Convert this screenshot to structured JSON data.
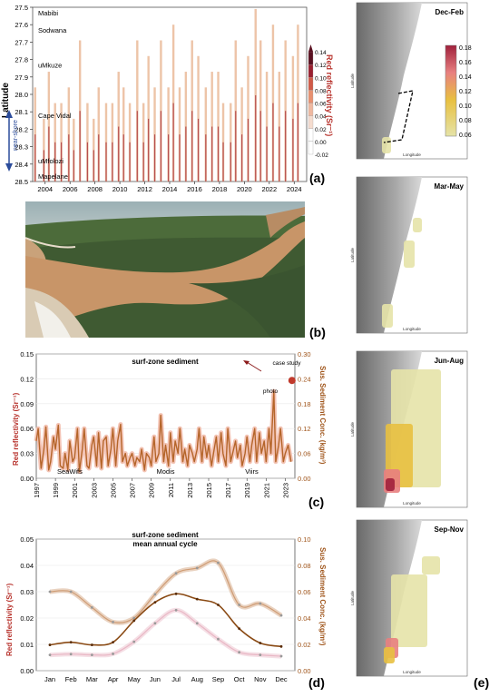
{
  "panel_a": {
    "letter": "(a)",
    "ylabel": "Latitude",
    "cbar_label": "Red reflectivity (Sr⁻¹)",
    "cbar_ticks": [
      "0.14",
      "0.12",
      "0.10",
      "0.08",
      "0.06",
      "0.04",
      "0.02",
      "0.00",
      "-0.02"
    ],
    "y_ticks": [
      "27.5",
      "27.6",
      "27.7",
      "27.8",
      "27.9",
      "28.0",
      "28.1",
      "28.2",
      "28.3",
      "28.4",
      "28.5"
    ],
    "x_ticks": [
      "2004",
      "2006",
      "2008",
      "2010",
      "2012",
      "2014",
      "2016",
      "2018",
      "2020",
      "2022",
      "2024"
    ],
    "places": [
      {
        "name": "Mabibi",
        "lat": 27.53
      },
      {
        "name": "Sodwana",
        "lat": 27.63
      },
      {
        "name": "uMkuze",
        "lat": 27.83
      },
      {
        "name": "Cape Vidal",
        "lat": 28.12
      },
      {
        "name": "uMfolozi",
        "lat": 28.38
      },
      {
        "name": "Mapelane",
        "lat": 28.47
      }
    ],
    "nearshore_label": "near-shore"
  },
  "panel_b": {
    "letter": "(b)"
  },
  "panel_c": {
    "letter": "(c)",
    "title": "surf-zone sediment",
    "ylabel_left": "Red reflectivity (Sr⁻¹)",
    "ylabel_right": "Sus. Sediment Conc. (kg/m³)",
    "y_left_ticks": [
      "0.15",
      "0.12",
      "0.09",
      "0.06",
      "0.03",
      "0.00"
    ],
    "y_right_ticks": [
      "0.30",
      "0.24",
      "0.18",
      "0.12",
      "0.06",
      "0.00"
    ],
    "x_ticks": [
      "1997",
      "1999",
      "2001",
      "2003",
      "2005",
      "2007",
      "2009",
      "2011",
      "2013",
      "2015",
      "2017",
      "2019",
      "2021",
      "2023"
    ],
    "sensors": [
      "SeaWifs",
      "Modis",
      "Viirs"
    ],
    "annotations": {
      "photo": "photo",
      "case_study": "case study"
    }
  },
  "panel_d": {
    "letter": "(d)",
    "title_line1": "surf-zone sediment",
    "title_line2": "mean annual cycle",
    "ylabel_left": "Red reflectivity (Sr⁻¹)",
    "ylabel_right": "Sus. Sediment Conc. (kg/m³)",
    "y_left_ticks": [
      "0.05",
      "0.04",
      "0.03",
      "0.02",
      "0.01",
      "0.00"
    ],
    "y_right_ticks": [
      "0.10",
      "0.08",
      "0.06",
      "0.04",
      "0.02",
      "0.00"
    ],
    "months": [
      "Jan",
      "Feb",
      "Mar",
      "Apr",
      "May",
      "Jun",
      "Jul",
      "Aug",
      "Sep",
      "Oct",
      "Nov",
      "Dec"
    ]
  },
  "panel_e": {
    "letter": "(e)",
    "seasons": [
      "Dec-Feb",
      "Mar-May",
      "Jun-Aug",
      "Sep-Nov"
    ],
    "cbar_ticks": [
      "0.18",
      "0.16",
      "0.14",
      "0.12",
      "0.10",
      "0.08",
      "0.06"
    ],
    "xlabel": "Longitude",
    "ylabel": "Latitude"
  },
  "chart_data": [
    {
      "type": "heatmap",
      "panel": "a",
      "ylabel": "Latitude",
      "ylim": [
        28.5,
        27.5
      ],
      "xlim": [
        2003,
        2025
      ],
      "colorbar_label": "Red reflectivity (Sr⁻¹)",
      "colorbar_range": [
        -0.02,
        0.14
      ],
      "event_years": [
        2003.2,
        2003.9,
        2004.3,
        2004.8,
        2005.3,
        2005.9,
        2006.3,
        2006.8,
        2007.4,
        2007.9,
        2008.3,
        2008.9,
        2009.4,
        2009.9,
        2010.3,
        2010.8,
        2011.4,
        2011.9,
        2012.3,
        2012.8,
        2013.3,
        2013.9,
        2014.3,
        2014.8,
        2015.3,
        2015.8,
        2016.3,
        2016.9,
        2017.4,
        2017.9,
        2018.3,
        2018.9,
        2019.3,
        2019.8,
        2020.3,
        2020.9,
        2021.3,
        2021.8,
        2022.3,
        2022.8,
        2023.3,
        2023.9,
        2024.3
      ],
      "event_intensity": [
        0.06,
        0.04,
        0.07,
        0.05,
        0.05,
        0.06,
        0.04,
        0.09,
        0.05,
        0.04,
        0.06,
        0.05,
        0.05,
        0.07,
        0.06,
        0.05,
        0.09,
        0.05,
        0.08,
        0.06,
        0.09,
        0.06,
        0.1,
        0.06,
        0.07,
        0.09,
        0.08,
        0.06,
        0.07,
        0.07,
        0.05,
        0.05,
        0.09,
        0.06,
        0.08,
        0.11,
        0.09,
        0.07,
        0.1,
        0.07,
        0.09,
        0.08,
        0.1
      ]
    },
    {
      "type": "line",
      "panel": "c",
      "title": "surf-zone sediment",
      "ylabel": "Red reflectivity (Sr⁻¹)",
      "y2label": "Sus. Sediment Conc. (kg/m³)",
      "ylim": [
        0,
        0.15
      ],
      "y2lim": [
        0,
        0.3
      ],
      "xlim": [
        1997,
        2024
      ],
      "x": [
        1997.0,
        1997.2,
        1997.5,
        1997.8,
        1998.0,
        1998.3,
        1998.5,
        1998.8,
        1999.0,
        1999.3,
        1999.5,
        1999.8,
        2000.0,
        2000.3,
        2000.5,
        2000.8,
        2001.0,
        2001.3,
        2001.5,
        2001.8,
        2002.0,
        2002.3,
        2002.5,
        2002.8,
        2003.0,
        2003.3,
        2003.5,
        2003.8,
        2004.0,
        2004.3,
        2004.5,
        2004.8,
        2005.0,
        2005.3,
        2005.5,
        2005.8,
        2006.0,
        2006.3,
        2006.5,
        2006.8,
        2007.0,
        2007.3,
        2007.5,
        2007.8,
        2008.0,
        2008.3,
        2008.5,
        2008.8,
        2009.0,
        2009.3,
        2009.5,
        2009.8,
        2010.0,
        2010.3,
        2010.5,
        2010.8,
        2011.0,
        2011.3,
        2011.5,
        2011.8,
        2012.0,
        2012.3,
        2012.5,
        2012.8,
        2013.0,
        2013.3,
        2013.5,
        2013.8,
        2014.0,
        2014.3,
        2014.5,
        2014.8,
        2015.0,
        2015.3,
        2015.5,
        2015.8,
        2016.0,
        2016.3,
        2016.5,
        2016.8,
        2017.0,
        2017.3,
        2017.5,
        2017.8,
        2018.0,
        2018.3,
        2018.5,
        2018.8,
        2019.0,
        2019.3,
        2019.5,
        2019.8,
        2020.0,
        2020.3,
        2020.5,
        2020.8,
        2021.0,
        2021.3,
        2021.5,
        2021.8,
        2022.0,
        2022.3,
        2022.5,
        2022.8,
        2023.0,
        2023.3,
        2023.6
      ],
      "values": [
        0.045,
        0.06,
        0.012,
        0.035,
        0.062,
        0.01,
        0.02,
        0.05,
        0.035,
        0.064,
        0.015,
        0.012,
        0.03,
        0.01,
        0.045,
        0.02,
        0.025,
        0.06,
        0.008,
        0.035,
        0.06,
        0.015,
        0.012,
        0.04,
        0.05,
        0.015,
        0.055,
        0.012,
        0.045,
        0.05,
        0.015,
        0.035,
        0.06,
        0.015,
        0.045,
        0.065,
        0.02,
        0.03,
        0.015,
        0.025,
        0.03,
        0.015,
        0.025,
        0.02,
        0.035,
        0.01,
        0.03,
        0.025,
        0.015,
        0.05,
        0.02,
        0.03,
        0.076,
        0.02,
        0.04,
        0.015,
        0.055,
        0.02,
        0.045,
        0.03,
        0.06,
        0.02,
        0.035,
        0.015,
        0.04,
        0.03,
        0.02,
        0.035,
        0.06,
        0.02,
        0.05,
        0.025,
        0.04,
        0.015,
        0.03,
        0.05,
        0.02,
        0.055,
        0.03,
        0.015,
        0.06,
        0.02,
        0.03,
        0.045,
        0.025,
        0.04,
        0.015,
        0.03,
        0.05,
        0.02,
        0.04,
        0.06,
        0.02,
        0.055,
        0.03,
        0.045,
        0.02,
        0.06,
        0.03,
        0.105,
        0.02,
        0.04,
        0.06,
        0.02,
        0.03,
        0.04,
        0.02
      ],
      "case_study": {
        "x": 2023.7,
        "y": 0.118
      }
    },
    {
      "type": "line",
      "panel": "d",
      "title": "surf-zone sediment mean annual cycle",
      "ylabel": "Red reflectivity (Sr⁻¹)",
      "y2label": "Sus. Sediment Conc. (kg/m³)",
      "ylim": [
        0,
        0.05
      ],
      "y2lim": [
        0,
        0.1
      ],
      "categories": [
        "Jan",
        "Feb",
        "Mar",
        "Apr",
        "May",
        "Jun",
        "Jul",
        "Aug",
        "Sep",
        "Oct",
        "Nov",
        "Dec"
      ],
      "series": [
        {
          "color": "#cf9c74",
          "values": [
            0.03,
            0.03,
            0.024,
            0.0185,
            0.02,
            0.029,
            0.037,
            0.039,
            0.041,
            0.025,
            0.0255,
            0.021
          ]
        },
        {
          "color": "#8a4a14",
          "values": [
            0.0098,
            0.0108,
            0.0098,
            0.0108,
            0.019,
            0.026,
            0.0292,
            0.0272,
            0.025,
            0.016,
            0.0105,
            0.0092
          ]
        },
        {
          "color": "#e9b7c5",
          "values": [
            0.006,
            0.0063,
            0.006,
            0.0064,
            0.011,
            0.018,
            0.023,
            0.018,
            0.012,
            0.007,
            0.006,
            0.0055
          ]
        }
      ]
    }
  ]
}
